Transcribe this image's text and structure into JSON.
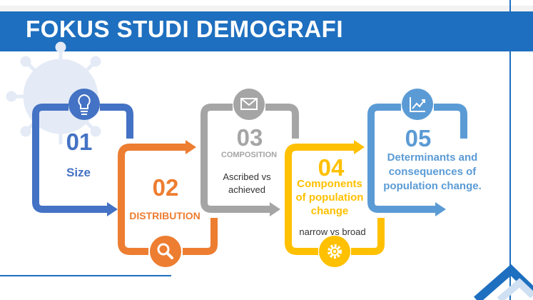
{
  "header": {
    "title": "FOKUS STUDI DEMOGRAFI"
  },
  "colors": {
    "banner": "#1e6fbf",
    "step1": "#4472c4",
    "step2": "#ed7d31",
    "step3": "#a5a5a5",
    "step4": "#ffc000",
    "step5": "#5b9bd5"
  },
  "steps": [
    {
      "number": "01",
      "label": "Size",
      "icon": "lightbulb-icon"
    },
    {
      "number": "02",
      "label": "DISTRIBUTION",
      "icon": "magnifier-icon"
    },
    {
      "number": "03",
      "label": "COMPOSITION",
      "sub_line1": "Ascribed vs",
      "sub_line2": "achieved",
      "icon": "envelope-icon"
    },
    {
      "number": "04",
      "label_line1": "Components",
      "label_line2": "of population",
      "label_line3": "change",
      "sub": "narrow vs broad",
      "icon": "gear-icon"
    },
    {
      "number": "05",
      "label_line1": "Determinants and",
      "label_line2": "consequences of",
      "label_line3": "population change.",
      "icon": "chart-icon"
    }
  ]
}
